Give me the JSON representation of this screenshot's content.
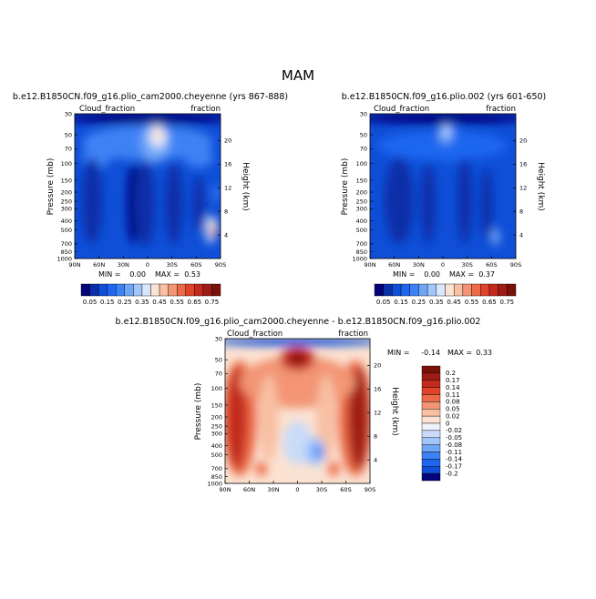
{
  "page_title": "MAM",
  "chart_data": [
    {
      "type": "contour",
      "title": "b.e12.B1850CN.f09_g16.plio_cam2000.cheyenne (yrs 867-888)",
      "left_label": "Cloud_fraction",
      "right_label": "fraction",
      "xlabel": "",
      "ylabel": "Pressure (mb)",
      "y2label": "Height (km)",
      "x_ticks": [
        "90N",
        "60N",
        "30N",
        "0",
        "30S",
        "60S",
        "90S"
      ],
      "y_ticks": [
        "30",
        "50",
        "70",
        "100",
        "150",
        "200",
        "250",
        "300",
        "400",
        "500",
        "700",
        "850",
        "1000"
      ],
      "height_ticks": [
        "20",
        "16",
        "12",
        "8",
        "4"
      ],
      "stats": {
        "min_label": "MIN =",
        "min": "0.00",
        "max_label": "MAX =",
        "max": "0.53"
      },
      "colorbar_labels": [
        "0.05",
        "0.15",
        "0.25",
        "0.35",
        "0.45",
        "0.55",
        "0.65",
        "0.75"
      ],
      "colors": [
        "#04047c",
        "#0a2fa8",
        "#0f4fd8",
        "#1e66f0",
        "#3c82f5",
        "#6fa5f7",
        "#a3c6fa",
        "#d9e7fc",
        "#fbe2d2",
        "#f8bfa3",
        "#f39574",
        "#ec6a47",
        "#e0422a",
        "#c32a1d",
        "#9e1c14",
        "#7a1109"
      ],
      "field": "plio_cam2000"
    },
    {
      "type": "contour",
      "title": "b.e12.B1850CN.f09_g16.plio.002 (yrs 601-650)",
      "left_label": "Cloud_fraction",
      "right_label": "fraction",
      "xlabel": "",
      "ylabel": "Pressure (mb)",
      "y2label": "Height (km)",
      "x_ticks": [
        "90N",
        "60N",
        "30N",
        "0",
        "30S",
        "60S",
        "90S"
      ],
      "y_ticks": [
        "30",
        "50",
        "70",
        "100",
        "150",
        "200",
        "250",
        "300",
        "400",
        "500",
        "700",
        "850",
        "1000"
      ],
      "height_ticks": [
        "20",
        "16",
        "12",
        "8",
        "4"
      ],
      "stats": {
        "min_label": "MIN =",
        "min": "0.00",
        "max_label": "MAX =",
        "max": "0.37"
      },
      "colorbar_labels": [
        "0.05",
        "0.15",
        "0.25",
        "0.35",
        "0.45",
        "0.55",
        "0.65",
        "0.75"
      ],
      "colors": [
        "#04047c",
        "#0a2fa8",
        "#0f4fd8",
        "#1e66f0",
        "#3c82f5",
        "#6fa5f7",
        "#a3c6fa",
        "#d9e7fc",
        "#fbe2d2",
        "#f8bfa3",
        "#f39574",
        "#ec6a47",
        "#e0422a",
        "#c32a1d",
        "#9e1c14",
        "#7a1109"
      ],
      "field": "plio_002"
    },
    {
      "type": "contour",
      "title": "b.e12.B1850CN.f09_g16.plio_cam2000.cheyenne - b.e12.B1850CN.f09_g16.plio.002",
      "left_label": "Cloud_fraction",
      "right_label": "fraction",
      "xlabel": "",
      "ylabel": "Pressure (mb)",
      "y2label": "Height (km)",
      "x_ticks": [
        "90N",
        "60N",
        "30N",
        "0",
        "30S",
        "60S",
        "90S"
      ],
      "y_ticks": [
        "30",
        "50",
        "70",
        "100",
        "150",
        "200",
        "250",
        "300",
        "400",
        "500",
        "700",
        "850",
        "1000"
      ],
      "height_ticks": [
        "20",
        "16",
        "12",
        "8",
        "4"
      ],
      "stats": {
        "min_label": "MIN =",
        "min": "-0.14",
        "max_label": "MAX =",
        "max": "0.33"
      },
      "colorbar_labels": [
        "0.2",
        "0.17",
        "0.14",
        "0.11",
        "0.08",
        "0.05",
        "0.02",
        "0",
        "-0.02",
        "-0.05",
        "-0.08",
        "-0.11",
        "-0.14",
        "-0.17",
        "-0.2"
      ],
      "colors": [
        "#7a1109",
        "#9e1c14",
        "#c32a1d",
        "#e0422a",
        "#ec6a47",
        "#f39574",
        "#f8bfa3",
        "#fbe2d2",
        "#eef3fb",
        "#c9dbf8",
        "#a3c6fa",
        "#6fa5f7",
        "#3c82f5",
        "#1e66f0",
        "#0f4fd8",
        "#04047c"
      ],
      "field": "difference"
    }
  ]
}
